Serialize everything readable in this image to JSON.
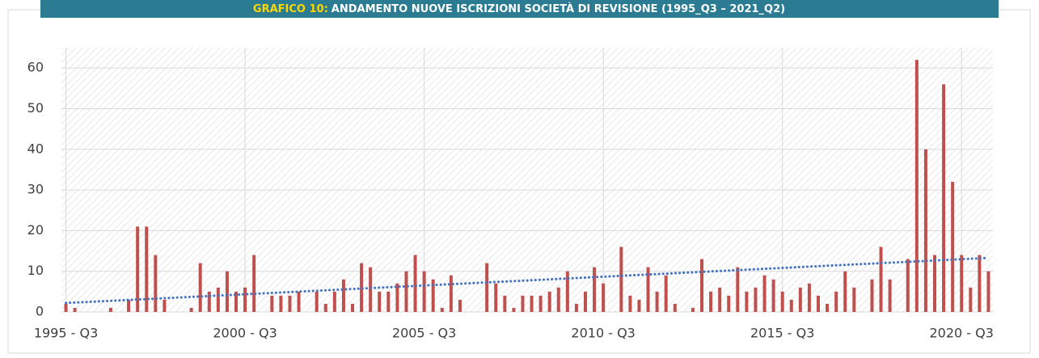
{
  "chart_data": {
    "type": "bar",
    "title_label": "GRAFICO 10:",
    "title": "ANDAMENTO NUOVE ISCRIZIONI SOCIETÀ DI REVISIONE (1995_Q3 – 2021_Q2)",
    "categories": [
      "1995 - Q3",
      null,
      null,
      null,
      null,
      null,
      null,
      null,
      null,
      null,
      null,
      null,
      null,
      null,
      null,
      null,
      null,
      null,
      null,
      null,
      "2000 - Q3",
      null,
      null,
      null,
      null,
      null,
      null,
      null,
      null,
      null,
      null,
      null,
      null,
      null,
      null,
      null,
      null,
      null,
      null,
      null,
      "2005 - Q3",
      null,
      null,
      null,
      null,
      null,
      null,
      null,
      null,
      null,
      null,
      null,
      null,
      null,
      null,
      null,
      null,
      null,
      null,
      null,
      "2010 - Q3",
      null,
      null,
      null,
      null,
      null,
      null,
      null,
      null,
      null,
      null,
      null,
      null,
      null,
      null,
      null,
      null,
      null,
      null,
      null,
      "2015 - Q3",
      null,
      null,
      null,
      null,
      null,
      null,
      null,
      null,
      null,
      null,
      null,
      null,
      null,
      null,
      null,
      null,
      null,
      null,
      null,
      "2020 - Q3",
      null,
      null,
      null
    ],
    "values": [
      2,
      1,
      0,
      0,
      0,
      1,
      0,
      3,
      21,
      21,
      14,
      3,
      0,
      0,
      1,
      12,
      5,
      6,
      10,
      5,
      6,
      14,
      0,
      4,
      4,
      4,
      5,
      0,
      5,
      2,
      5,
      8,
      2,
      12,
      11,
      5,
      5,
      7,
      10,
      14,
      10,
      8,
      1,
      9,
      3,
      0,
      0,
      12,
      7,
      4,
      1,
      4,
      4,
      4,
      5,
      6,
      10,
      2,
      5,
      11,
      7,
      0,
      16,
      4,
      3,
      11,
      5,
      9,
      2,
      0,
      1,
      13,
      5,
      6,
      4,
      11,
      5,
      6,
      9,
      8,
      5,
      3,
      6,
      7,
      4,
      2,
      5,
      10,
      6,
      0,
      8,
      16,
      8,
      0,
      13,
      62,
      40,
      14,
      56,
      32,
      14,
      6,
      14,
      10
    ],
    "color": "#c0504d",
    "trend": {
      "color": "#4472c4",
      "values": [
        2.2,
        13.3
      ]
    },
    "ylim": [
      0,
      65
    ],
    "yticks": [
      0,
      10,
      20,
      30,
      40,
      50,
      60
    ],
    "grid": true
  }
}
